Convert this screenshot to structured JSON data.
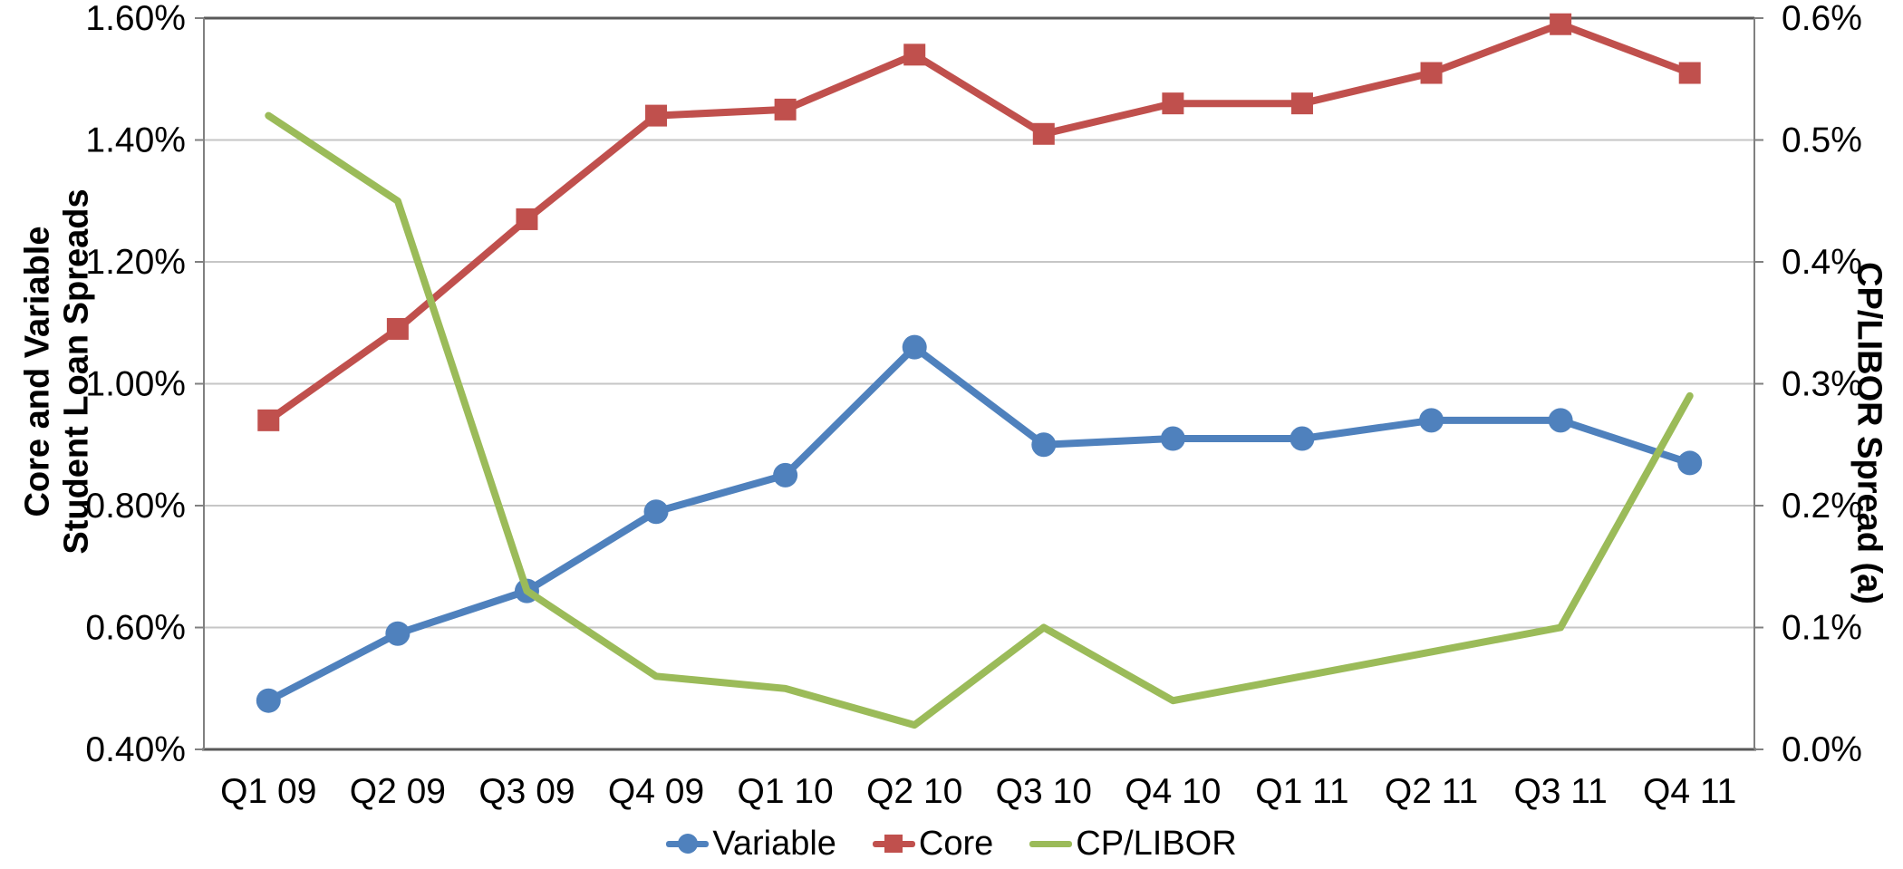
{
  "chart_data": {
    "type": "line",
    "categories": [
      "Q1 09",
      "Q2 09",
      "Q3 09",
      "Q4 09",
      "Q1 10",
      "Q2 10",
      "Q3 10",
      "Q4 10",
      "Q1 11",
      "Q2 11",
      "Q3 11",
      "Q4 11"
    ],
    "series": [
      {
        "name": "Variable",
        "axis": "left",
        "color": "#4F81BD",
        "marker": "circle",
        "values": [
          0.48,
          0.59,
          0.66,
          0.79,
          0.85,
          1.06,
          0.9,
          0.91,
          0.91,
          0.94,
          0.94,
          0.87
        ]
      },
      {
        "name": "Core",
        "axis": "left",
        "color": "#C0504D",
        "marker": "square",
        "values": [
          0.94,
          1.09,
          1.27,
          1.44,
          1.45,
          1.54,
          1.41,
          1.46,
          1.46,
          1.51,
          1.59,
          1.51
        ]
      },
      {
        "name": "CP/LIBOR",
        "axis": "right",
        "color": "#9BBB59",
        "marker": "none",
        "values": [
          0.52,
          0.45,
          0.13,
          0.06,
          0.05,
          0.02,
          0.1,
          0.04,
          0.06,
          0.08,
          0.1,
          0.29
        ]
      }
    ],
    "left_axis": {
      "title_line1": "Core and Variable",
      "title_line2": "Student Loan Spreads",
      "min": 0.4,
      "max": 1.6,
      "step": 0.2,
      "tick_values": [
        0.4,
        0.6,
        0.8,
        1.0,
        1.2,
        1.4,
        1.6
      ],
      "tick_labels": [
        "0.40%",
        "0.60%",
        "0.80%",
        "1.00%",
        "1.20%",
        "1.40%",
        "1.60%"
      ]
    },
    "right_axis": {
      "title": "CP/LIBOR Spread (a)",
      "min": 0.0,
      "max": 0.6,
      "step": 0.1,
      "tick_values": [
        0.0,
        0.1,
        0.2,
        0.3,
        0.4,
        0.5,
        0.6
      ],
      "tick_labels": [
        "0.0%",
        "0.1%",
        "0.2%",
        "0.3%",
        "0.4%",
        "0.5%",
        "0.6%"
      ]
    },
    "grid": true,
    "legend_position": "bottom",
    "colors": {
      "gridline": "#C6C6C6",
      "plot_border": "#595959",
      "axis_line": "#808080",
      "text": "#000000",
      "background": "#FFFFFF"
    }
  }
}
